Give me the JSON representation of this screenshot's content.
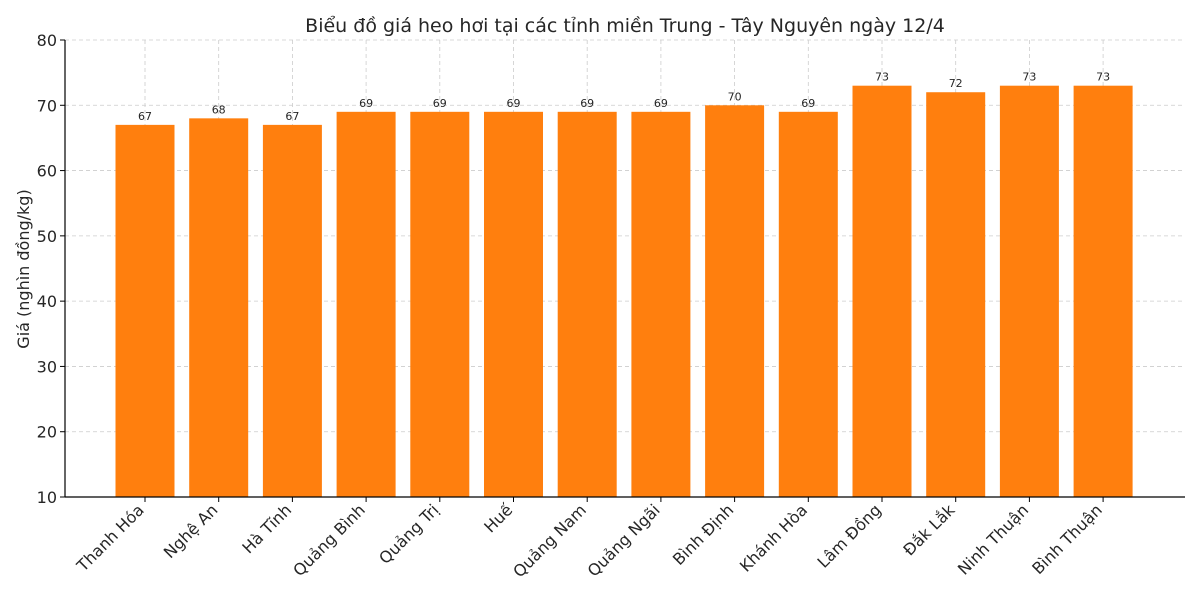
{
  "chart_data": {
    "type": "bar",
    "title": "Biểu đồ giá heo hơi tại các tỉnh miền Trung - Tây Nguyên ngày 12/4",
    "xlabel": "",
    "ylabel": "Giá (nghìn đồng/kg)",
    "ylim": [
      10,
      80
    ],
    "yticks": [
      "10",
      "20",
      "30",
      "40",
      "50",
      "60",
      "70",
      "80"
    ],
    "categories": [
      "Thanh Hóa",
      "Nghệ An",
      "Hà Tĩnh",
      "Quảng Bình",
      "Quảng Trị",
      "Huế",
      "Quảng Nam",
      "Quảng Ngãi",
      "Bình Định",
      "Khánh Hòa",
      "Lâm Đồng",
      "Đắk Lắk",
      "Ninh Thuận",
      "Bình Thuận"
    ],
    "values": [
      67,
      68,
      67,
      69,
      69,
      69,
      69,
      69,
      70,
      69,
      73,
      72,
      73,
      73
    ],
    "value_labels": [
      "67",
      "68",
      "67",
      "69",
      "69",
      "69",
      "69",
      "69",
      "70",
      "69",
      "73",
      "72",
      "73",
      "73"
    ],
    "bar_color": "#ff7f0e",
    "grid": true,
    "legend": "none"
  }
}
